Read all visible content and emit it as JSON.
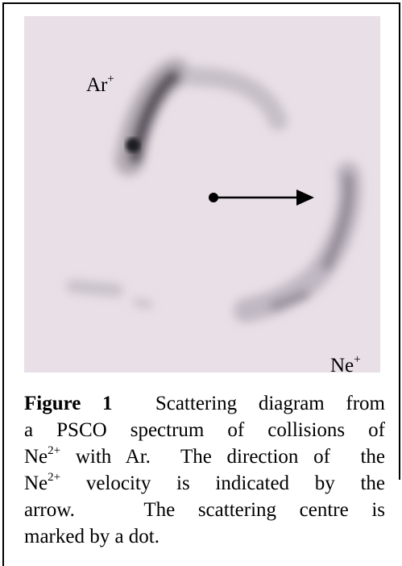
{
  "figure": {
    "labels": {
      "ar": {
        "base": "Ar",
        "sup": "+"
      },
      "ne": {
        "base": "Ne",
        "sup": "+"
      }
    },
    "caption": {
      "label": "Figure 1",
      "lines": [
        {
          "text": "Scattering diagram from"
        },
        {
          "text": "a PSCO spectrum of collisions of"
        },
        {
          "pre": "Ne",
          "sup": "2+",
          "post": " with Ar.  The direction of  the"
        },
        {
          "pre": "Ne",
          "sup": "2+",
          "post": " velocity is indicated by the"
        },
        {
          "text": "arrow.   The scattering centre is"
        },
        {
          "text": "marked by a dot."
        }
      ]
    }
  }
}
